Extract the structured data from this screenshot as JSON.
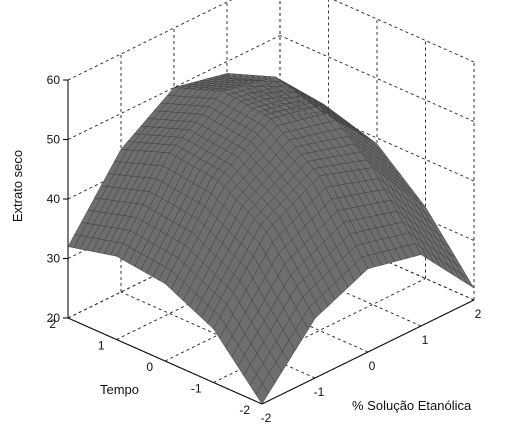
{
  "chart_data": {
    "type": "surface",
    "title": "",
    "zlabel": "Extrato seco",
    "ylabel": "Tempo",
    "xlabel": "% Solução Etanólica",
    "xlim": [
      -2,
      2
    ],
    "ylim": [
      -2,
      2
    ],
    "zlim": [
      20,
      60
    ],
    "x_ticks": [
      "-2",
      "-1",
      "0",
      "1",
      "2"
    ],
    "y_ticks": [
      "-2",
      "-1",
      "0",
      "1",
      "2"
    ],
    "z_ticks": [
      "20",
      "30",
      "40",
      "50",
      "60"
    ],
    "grid": true,
    "surface_color": "#6e6e6e",
    "mesh_color": "#3a3a3a",
    "surface": {
      "x": [
        -2,
        -1,
        0,
        1,
        2
      ],
      "y": [
        -2,
        -1,
        0,
        1,
        2
      ],
      "z": [
        [
          20,
          30,
          34,
          32,
          22
        ],
        [
          29,
          41,
          46,
          43,
          32
        ],
        [
          33,
          46,
          52,
          50,
          39
        ],
        [
          34,
          47,
          53,
          51,
          40
        ],
        [
          32,
          44,
          50,
          48,
          35
        ]
      ]
    }
  }
}
